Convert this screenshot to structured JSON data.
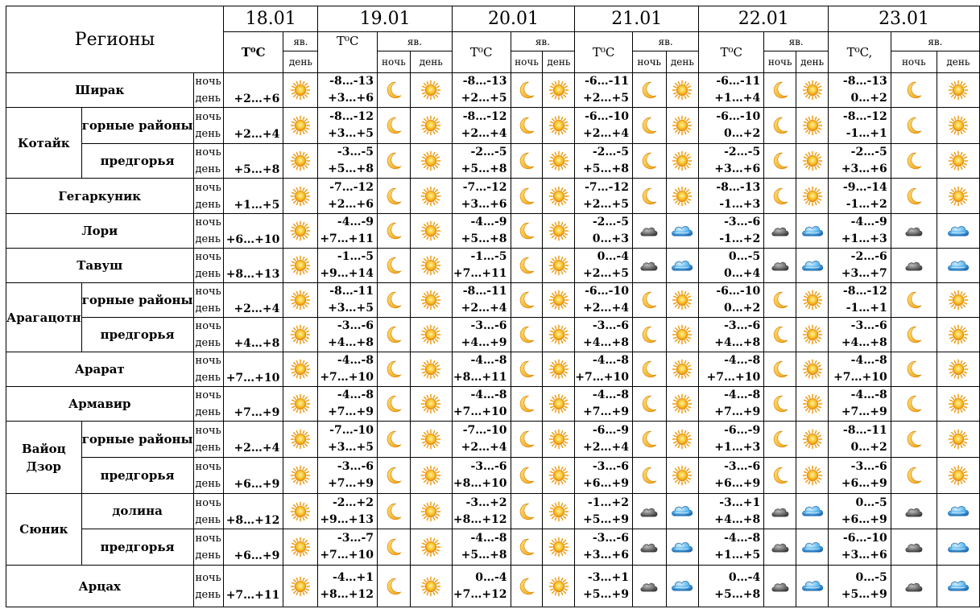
{
  "header": {
    "regions_title": "Регионы",
    "night_label": "ночь",
    "day_label": "день",
    "yav_label": "яв.",
    "days": [
      {
        "date": "18.01",
        "temp_label": "T⁰C"
      },
      {
        "date": "19.01",
        "temp_label": "T⁰C"
      },
      {
        "date": "20.01",
        "temp_label": "T⁰C"
      },
      {
        "date": "21.01",
        "temp_label": "T⁰C"
      },
      {
        "date": "22.01",
        "temp_label": "T⁰C"
      },
      {
        "date": "23.01",
        "temp_label": "T⁰C,"
      }
    ]
  },
  "rows": [
    {
      "region": "Ширак",
      "sub": "",
      "t0": "+2…+6",
      "i0": "sun",
      "days": [
        [
          "-8…-13",
          "+3…+6",
          "moon",
          "sun"
        ],
        [
          "-8…-13",
          "+2…+5",
          "moon",
          "sun"
        ],
        [
          "-6…-11",
          "+2…+5",
          "moon",
          "sun"
        ],
        [
          "-6…-11",
          "+1…+4",
          "moon",
          "sun"
        ],
        [
          "-8…-13",
          "0…+2",
          "moon",
          "sun"
        ]
      ]
    },
    {
      "region": "Котайк",
      "sub": "горные районы",
      "t0": "+2…+4",
      "i0": "sun",
      "days": [
        [
          "-8…-12",
          "+3…+5",
          "moon",
          "sun"
        ],
        [
          "-8…-12",
          "+2…+4",
          "moon",
          "sun"
        ],
        [
          "-6…-10",
          "+2…+4",
          "moon",
          "sun"
        ],
        [
          "-6…-10",
          "0…+2",
          "moon",
          "sun"
        ],
        [
          "-8…-12",
          "-1…+1",
          "moon",
          "sun"
        ]
      ]
    },
    {
      "region": "",
      "sub": "предгорья",
      "t0": "+5…+8",
      "i0": "sun",
      "days": [
        [
          "-3…-5",
          "+5…+8",
          "moon",
          "sun"
        ],
        [
          "-2…-5",
          "+5…+8",
          "moon",
          "sun"
        ],
        [
          "-2…-5",
          "+5…+8",
          "moon",
          "sun"
        ],
        [
          "-2…-5",
          "+3…+6",
          "moon",
          "sun"
        ],
        [
          "-2…-5",
          "+3…+6",
          "moon",
          "sun"
        ]
      ]
    },
    {
      "region": "Гегаркуник",
      "sub": "",
      "t0": "+1…+5",
      "i0": "sun",
      "days": [
        [
          "-7…-12",
          "+2…+6",
          "moon",
          "sun"
        ],
        [
          "-7…-12",
          "+3…+6",
          "moon",
          "sun"
        ],
        [
          "-7…-12",
          "+2…+5",
          "moon",
          "sun"
        ],
        [
          "-8…-13",
          "-1…+3",
          "moon",
          "sun"
        ],
        [
          "-9…-14",
          "-1…+2",
          "moon",
          "sun"
        ]
      ]
    },
    {
      "region": "Лори",
      "sub": "",
      "t0": "+6…+10",
      "i0": "sun",
      "days": [
        [
          "-4…-9",
          "+7…+11",
          "moon",
          "sun"
        ],
        [
          "-4…-9",
          "+5…+8",
          "moon",
          "sun"
        ],
        [
          "-2…-5",
          "0…+3",
          "cloud",
          "rain"
        ],
        [
          "-3…-6",
          "-1…+2",
          "cloud",
          "rain"
        ],
        [
          "-4…-9",
          "+1…+3",
          "cloud",
          "rain"
        ]
      ]
    },
    {
      "region": "Тавуш",
      "sub": "",
      "t0": "+8…+13",
      "i0": "sun",
      "days": [
        [
          "-1…-5",
          "+9…+14",
          "moon",
          "sun"
        ],
        [
          "-1…-5",
          "+7…+11",
          "moon",
          "sun"
        ],
        [
          "0…-4",
          "+2…+5",
          "cloud",
          "rain"
        ],
        [
          "0…-5",
          "0…+4",
          "cloud",
          "rain"
        ],
        [
          "-2…-6",
          "+3…+7",
          "cloud",
          "rain"
        ]
      ]
    },
    {
      "region": "Арагацотн",
      "sub": "горные районы",
      "t0": "+2…+4",
      "i0": "sun",
      "days": [
        [
          "-8…-11",
          "+3…+5",
          "moon",
          "sun"
        ],
        [
          "-8…-11",
          "+2…+4",
          "moon",
          "sun"
        ],
        [
          "-6…-10",
          "+2…+4",
          "moon",
          "sun"
        ],
        [
          "-6…-10",
          "0…+2",
          "moon",
          "sun"
        ],
        [
          "-8…-12",
          "-1…+1",
          "moon",
          "sun"
        ]
      ]
    },
    {
      "region": "",
      "sub": "предгорья",
      "t0": "+4…+8",
      "i0": "sun",
      "days": [
        [
          "-3…-6",
          "+4…+8",
          "moon",
          "sun"
        ],
        [
          "-3…-6",
          "+4…+9",
          "moon",
          "sun"
        ],
        [
          "-3…-6",
          "+4…+8",
          "moon",
          "sun"
        ],
        [
          "-3…-6",
          "+4…+8",
          "moon",
          "sun"
        ],
        [
          "-3…-6",
          "+4…+8",
          "moon",
          "sun"
        ]
      ]
    },
    {
      "region": "Арарат",
      "sub": "",
      "t0": "+7…+10",
      "i0": "sun",
      "days": [
        [
          "-4…-8",
          "+7…+10",
          "moon",
          "sun"
        ],
        [
          "-4…-8",
          "+8…+11",
          "moon",
          "sun"
        ],
        [
          "-4…-8",
          "+7…+10",
          "moon",
          "sun"
        ],
        [
          "-4…-8",
          "+7…+10",
          "moon",
          "sun"
        ],
        [
          "-4…-8",
          "+7…+10",
          "moon",
          "sun"
        ]
      ]
    },
    {
      "region": "Армавир",
      "sub": "",
      "t0": "+7…+9",
      "i0": "sun",
      "days": [
        [
          "-4…-8",
          "+7…+9",
          "moon",
          "sun"
        ],
        [
          "-4…-8",
          "+7…+10",
          "moon",
          "sun"
        ],
        [
          "-4…-8",
          "+7…+9",
          "moon",
          "sun"
        ],
        [
          "-4…-8",
          "+7…+9",
          "moon",
          "sun"
        ],
        [
          "-4…-8",
          "+7…+9",
          "moon",
          "sun"
        ]
      ]
    },
    {
      "region": "Вайоц Дзор",
      "sub": "горные районы",
      "t0": "+2…+4",
      "i0": "sun",
      "days": [
        [
          "-7…-10",
          "+3…+5",
          "moon",
          "sun"
        ],
        [
          "-7…-10",
          "+2…+4",
          "moon",
          "sun"
        ],
        [
          "-6…-9",
          "+2…+4",
          "moon",
          "sun"
        ],
        [
          "-6…-9",
          "+1…+3",
          "moon",
          "sun"
        ],
        [
          "-8…-11",
          "0…+2",
          "moon",
          "sun"
        ]
      ]
    },
    {
      "region": "",
      "sub": "предгорья",
      "t0": "+6…+9",
      "i0": "sun",
      "days": [
        [
          "-3…-6",
          "+7…+9",
          "moon",
          "sun"
        ],
        [
          "-3…-6",
          "+8…+10",
          "moon",
          "sun"
        ],
        [
          "-3…-6",
          "+6…+9",
          "moon",
          "sun"
        ],
        [
          "-3…-6",
          "+6…+9",
          "moon",
          "sun"
        ],
        [
          "-3…-6",
          "+6…+9",
          "moon",
          "sun"
        ]
      ]
    },
    {
      "region": "Сюник",
      "sub": "долина",
      "t0": "+8…+12",
      "i0": "sun",
      "days": [
        [
          "-2…+2",
          "+9…+13",
          "moon",
          "sun"
        ],
        [
          "-3…+2",
          "+8…+12",
          "moon",
          "sun"
        ],
        [
          "-1…+2",
          "+5…+9",
          "cloud",
          "rain"
        ],
        [
          "-3…+1",
          "+4…+8",
          "cloud",
          "rain"
        ],
        [
          "0…-5",
          "+6…+9",
          "cloud",
          "rain"
        ]
      ]
    },
    {
      "region": "",
      "sub": "предгорья",
      "t0": "+6…+9",
      "i0": "sun",
      "days": [
        [
          "-3…-7",
          "+7…+10",
          "moon",
          "sun"
        ],
        [
          "-4…-8",
          "+5…+8",
          "moon",
          "sun"
        ],
        [
          "-3…-6",
          "+3…+6",
          "cloud",
          "rain"
        ],
        [
          "-4…-8",
          "+1…+5",
          "cloud",
          "rain"
        ],
        [
          "-6…-10",
          "+3…+6",
          "cloud",
          "rain"
        ]
      ]
    },
    {
      "region": "Арцах",
      "sub": "",
      "t0": "+7…+11",
      "i0": "sun",
      "days": [
        [
          "-4…+1",
          "+8…+12",
          "moon",
          "sun"
        ],
        [
          "0…-4",
          "+7…+12",
          "moon",
          "sun"
        ],
        [
          "-3…+1",
          "+5…+9",
          "cloud",
          "rain"
        ],
        [
          "0…-4",
          "+5…+8",
          "cloud",
          "rain"
        ],
        [
          "0…-5",
          "+5…+9",
          "cloud",
          "rain"
        ]
      ]
    }
  ],
  "colors": {
    "sun": "#f7a21b",
    "moon": "#f6b31f",
    "cloud": "#5f5f5f",
    "rain": "#3a9bd8"
  }
}
